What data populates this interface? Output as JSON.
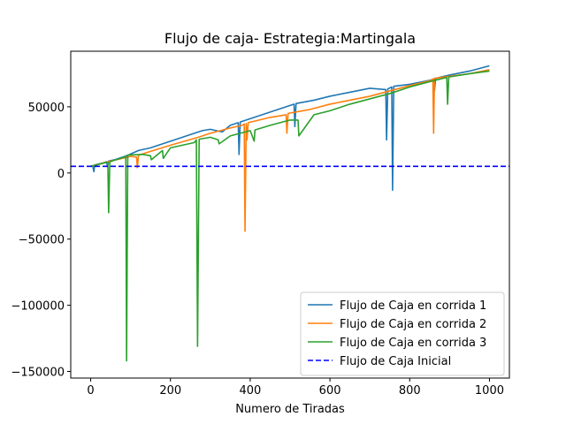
{
  "chart_data": {
    "type": "line",
    "title": "Flujo de caja- Estrategia:Martingala",
    "xlabel": "Numero de Tiradas",
    "ylabel": "",
    "xlim": [
      -50,
      1050
    ],
    "ylim": [
      -155000,
      92000
    ],
    "xticks": [
      0,
      200,
      400,
      600,
      800,
      1000
    ],
    "xtick_labels": [
      "0",
      "200",
      "400",
      "600",
      "800",
      "1000"
    ],
    "yticks": [
      -150000,
      -100000,
      -50000,
      0,
      50000
    ],
    "ytick_labels": [
      "−150000",
      "−100000",
      "−50000",
      "0",
      "50000"
    ],
    "grid": false,
    "legend_position": "bottom-right",
    "series": [
      {
        "name": "Flujo de Caja en corrida 1",
        "color": "#1f77b4",
        "style": "solid",
        "points": [
          [
            0,
            5000
          ],
          [
            5,
            5500
          ],
          [
            8,
            1000
          ],
          [
            10,
            6000
          ],
          [
            30,
            7500
          ],
          [
            40,
            8500
          ],
          [
            42,
            5000
          ],
          [
            45,
            9000
          ],
          [
            60,
            10000
          ],
          [
            90,
            13000
          ],
          [
            120,
            17000
          ],
          [
            150,
            19000
          ],
          [
            200,
            24000
          ],
          [
            240,
            28000
          ],
          [
            280,
            32000
          ],
          [
            300,
            33000
          ],
          [
            330,
            31000
          ],
          [
            350,
            36000
          ],
          [
            370,
            38000
          ],
          [
            372,
            14000
          ],
          [
            375,
            38500
          ],
          [
            400,
            41000
          ],
          [
            450,
            46000
          ],
          [
            500,
            51000
          ],
          [
            510,
            52000
          ],
          [
            512,
            35000
          ],
          [
            515,
            52500
          ],
          [
            560,
            55000
          ],
          [
            600,
            58000
          ],
          [
            650,
            61000
          ],
          [
            700,
            64000
          ],
          [
            740,
            63000
          ],
          [
            742,
            25000
          ],
          [
            745,
            63500
          ],
          [
            755,
            65000
          ],
          [
            757,
            -13000
          ],
          [
            760,
            65500
          ],
          [
            800,
            67000
          ],
          [
            850,
            70000
          ],
          [
            860,
            71000
          ],
          [
            862,
            62000
          ],
          [
            865,
            71500
          ],
          [
            900,
            74000
          ],
          [
            950,
            77000
          ],
          [
            1000,
            81000
          ]
        ]
      },
      {
        "name": "Flujo de Caja en corrida 2",
        "color": "#ff7f0e",
        "style": "solid",
        "points": [
          [
            0,
            5000
          ],
          [
            50,
            9000
          ],
          [
            100,
            12500
          ],
          [
            115,
            12000
          ],
          [
            117,
            4000
          ],
          [
            120,
            13500
          ],
          [
            200,
            21000
          ],
          [
            270,
            27000
          ],
          [
            300,
            30000
          ],
          [
            350,
            34000
          ],
          [
            380,
            36000
          ],
          [
            385,
            37000
          ],
          [
            387,
            -44000
          ],
          [
            390,
            37500
          ],
          [
            392,
            25000
          ],
          [
            395,
            38000
          ],
          [
            450,
            42000
          ],
          [
            490,
            44000
          ],
          [
            492,
            30000
          ],
          [
            495,
            45000
          ],
          [
            550,
            48000
          ],
          [
            600,
            52000
          ],
          [
            650,
            55000
          ],
          [
            700,
            58000
          ],
          [
            750,
            62000
          ],
          [
            800,
            66000
          ],
          [
            855,
            70000
          ],
          [
            858,
            71000
          ],
          [
            860,
            30000
          ],
          [
            862,
            71500
          ],
          [
            900,
            73000
          ],
          [
            950,
            75000
          ],
          [
            1000,
            78000
          ]
        ]
      },
      {
        "name": "Flujo de Caja en corrida 3",
        "color": "#2ca02c",
        "style": "solid",
        "points": [
          [
            0,
            5000
          ],
          [
            40,
            8000
          ],
          [
            43,
            8000
          ],
          [
            45,
            -30000
          ],
          [
            48,
            8500
          ],
          [
            85,
            12000
          ],
          [
            88,
            13000
          ],
          [
            90,
            -142000
          ],
          [
            93,
            13500
          ],
          [
            130,
            14000
          ],
          [
            150,
            13000
          ],
          [
            152,
            10000
          ],
          [
            180,
            17000
          ],
          [
            182,
            11000
          ],
          [
            200,
            19000
          ],
          [
            260,
            23000
          ],
          [
            265,
            25000
          ],
          [
            268,
            -131000
          ],
          [
            272,
            25500
          ],
          [
            300,
            27000
          ],
          [
            320,
            25000
          ],
          [
            322,
            22000
          ],
          [
            350,
            28000
          ],
          [
            400,
            32000
          ],
          [
            410,
            24000
          ],
          [
            412,
            32500
          ],
          [
            450,
            36000
          ],
          [
            500,
            40000
          ],
          [
            520,
            40000
          ],
          [
            522,
            28000
          ],
          [
            560,
            44000
          ],
          [
            600,
            47000
          ],
          [
            650,
            52000
          ],
          [
            700,
            56000
          ],
          [
            750,
            60000
          ],
          [
            800,
            65000
          ],
          [
            850,
            69000
          ],
          [
            890,
            72000
          ],
          [
            893,
            72000
          ],
          [
            895,
            52000
          ],
          [
            898,
            72500
          ],
          [
            950,
            75000
          ],
          [
            1000,
            77000
          ]
        ]
      }
    ],
    "reference_line": {
      "name": "Flujo de Caja Inicial",
      "color": "#0000ff",
      "style": "dashed",
      "y": 5000
    }
  }
}
